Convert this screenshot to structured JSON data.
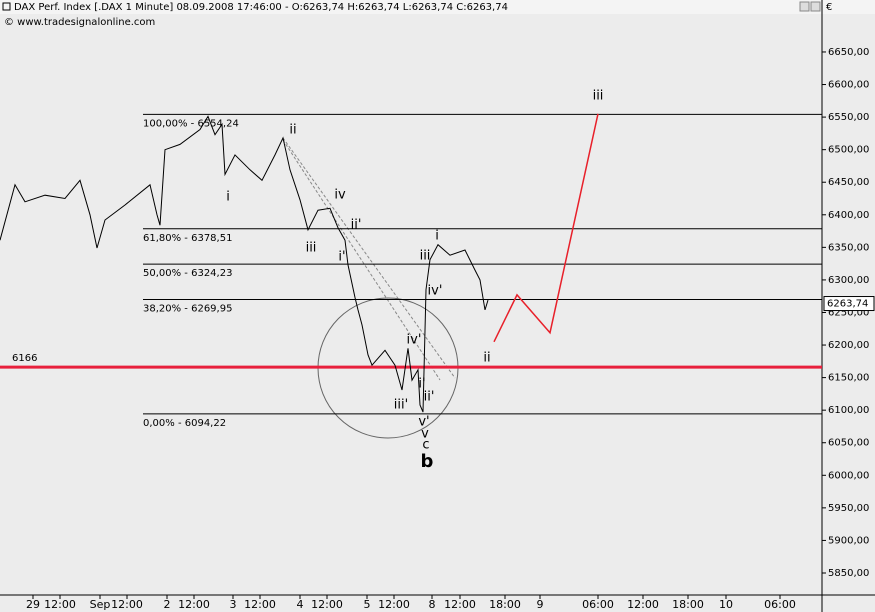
{
  "chart_data": {
    "type": "line",
    "title": "DAX Perf. Index [.DAX  1 Minute] 08.09.2008 17:46:00 - O:6263,74 H:6263,74 L:6263,74 C:6263,74",
    "subtitle": "© www.tradesignalonline.com",
    "currency": "€",
    "xlim": [
      0,
      822
    ],
    "ylim": [
      5816.2,
      6708.3
    ],
    "xticks": [
      {
        "value": 33,
        "label": "29"
      },
      {
        "value": 60,
        "label": "12:00"
      },
      {
        "value": 100,
        "label": "Sep"
      },
      {
        "value": 127,
        "label": "12:00"
      },
      {
        "value": 167,
        "label": "2"
      },
      {
        "value": 194,
        "label": "12:00"
      },
      {
        "value": 233,
        "label": "3"
      },
      {
        "value": 260,
        "label": "12:00"
      },
      {
        "value": 300,
        "label": "4"
      },
      {
        "value": 327,
        "label": "12:00"
      },
      {
        "value": 367,
        "label": "5"
      },
      {
        "value": 394,
        "label": "12:00"
      },
      {
        "value": 432,
        "label": "8"
      },
      {
        "value": 460,
        "label": "12:00"
      },
      {
        "value": 505,
        "label": "18:00"
      },
      {
        "value": 540,
        "label": "9"
      },
      {
        "value": 598,
        "label": "06:00"
      },
      {
        "value": 643,
        "label": "12:00"
      },
      {
        "value": 688,
        "label": "18:00"
      },
      {
        "value": 726,
        "label": "10"
      },
      {
        "value": 780,
        "label": "06:00"
      }
    ],
    "yticks": [
      {
        "value": 5850,
        "label": "5850,00"
      },
      {
        "value": 5900,
        "label": "5900,00"
      },
      {
        "value": 5950,
        "label": "5950,00"
      },
      {
        "value": 6000,
        "label": "6000,00"
      },
      {
        "value": 6050,
        "label": "6050,00"
      },
      {
        "value": 6100,
        "label": "6100,00"
      },
      {
        "value": 6150,
        "label": "6150,00"
      },
      {
        "value": 6200,
        "label": "6200,00"
      },
      {
        "value": 6250,
        "label": "6250,00"
      },
      {
        "value": 6300,
        "label": "6300,00"
      },
      {
        "value": 6350,
        "label": "6350,00"
      },
      {
        "value": 6400,
        "label": "6400,00"
      },
      {
        "value": 6450,
        "label": "6450,00"
      },
      {
        "value": 6500,
        "label": "6500,00"
      },
      {
        "value": 6550,
        "label": "6550,00"
      },
      {
        "value": 6600,
        "label": "6600,00"
      },
      {
        "value": 6650,
        "label": "6650,00"
      }
    ],
    "series": [
      {
        "name": "DAX",
        "color": "#000000",
        "x": [
          0,
          15,
          25,
          45,
          65,
          80,
          90,
          97,
          105,
          125,
          150,
          157,
          160,
          165,
          180,
          200,
          208,
          215,
          222,
          225,
          235,
          250,
          262,
          275,
          283,
          290,
          300,
          308,
          318,
          330,
          338,
          345,
          348,
          355,
          358,
          362,
          368,
          372,
          385,
          395,
          402,
          408,
          412,
          418,
          420,
          423,
          426,
          430,
          438,
          450,
          465,
          475,
          480,
          485,
          488
        ],
        "values": [
          6361,
          6446,
          6420,
          6430,
          6425,
          6453,
          6400,
          6349,
          6392,
          6415,
          6446,
          6400,
          6384,
          6500,
          6508,
          6531,
          6551,
          6523,
          6539,
          6462,
          6492,
          6469,
          6453,
          6492,
          6518,
          6469,
          6423,
          6377,
          6407,
          6410,
          6380,
          6361,
          6323,
          6273,
          6254,
          6231,
          6185,
          6169,
          6192,
          6169,
          6131,
          6195,
          6146,
          6162,
          6108,
          6097,
          6285,
          6331,
          6354,
          6338,
          6346,
          6315,
          6300,
          6254,
          6269
        ]
      },
      {
        "name": "Forecast",
        "color": "#e8202a",
        "x": [
          494,
          517,
          550,
          598
        ],
        "values": [
          6205,
          6277,
          6219,
          6555
        ]
      }
    ],
    "levels": [
      {
        "value": 6554.24,
        "label": "100,00% - 6554,24"
      },
      {
        "value": 6378.51,
        "label": "61,80% - 6378,51"
      },
      {
        "value": 6324.23,
        "label": "50,00% - 6324,23"
      },
      {
        "value": 6269.95,
        "label": "38,20% - 6269,95"
      },
      {
        "value": 6094.22,
        "label": "0,00% - 6094,22"
      }
    ],
    "support": {
      "value": 6166,
      "label": "6166",
      "color": "#e8203c"
    },
    "last": {
      "value": 6263.74,
      "label": "6263,74"
    },
    "annotations": [
      {
        "text": "ii",
        "color": "#f0a030"
      },
      {
        "text": "i",
        "color": "#f0a030"
      },
      {
        "text": "iv",
        "color": "#f0a030"
      },
      {
        "text": "iii",
        "color": "#f0a030"
      },
      {
        "text": "i",
        "color": "#f0a030"
      },
      {
        "text": "ii",
        "color": "#f0a030"
      },
      {
        "text": "iii",
        "color": "#f0a030"
      },
      {
        "text": "v",
        "color": "#f0a030"
      },
      {
        "text": "ii'",
        "color": "#d0103a"
      },
      {
        "text": "i'",
        "color": "#d0103a"
      },
      {
        "text": "iii",
        "color": "#d0103a"
      },
      {
        "text": "iv'",
        "color": "#d0103a"
      },
      {
        "text": "iv'",
        "color": "#d0103a"
      },
      {
        "text": "i'",
        "color": "#d0103a"
      },
      {
        "text": "ii'",
        "color": "#d0103a"
      },
      {
        "text": "iii'",
        "color": "#d0103a"
      },
      {
        "text": "v'",
        "color": "#d0103a"
      },
      {
        "text": "c",
        "color": "#d0103a"
      },
      {
        "text": "b",
        "color": "#555555"
      }
    ]
  }
}
